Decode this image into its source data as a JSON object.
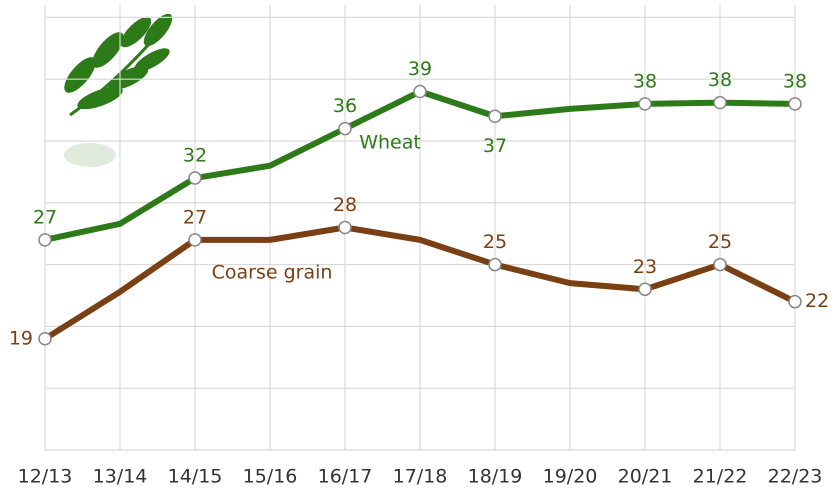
{
  "chart_data": {
    "type": "line",
    "categories": [
      "12/13",
      "13/14",
      "14/15",
      "15/16",
      "16/17",
      "17/18",
      "18/19",
      "19/20",
      "20/21",
      "21/22",
      "22/23"
    ],
    "series": [
      {
        "name": "Wheat",
        "color": "#2d7a19",
        "values": [
          27,
          28.3,
          32,
          33,
          36,
          39,
          37,
          37.6,
          38,
          38.1,
          38
        ],
        "value_labels": [
          "27",
          null,
          "32",
          null,
          "36",
          "39",
          "37",
          null,
          "38",
          "38",
          "38"
        ]
      },
      {
        "name": "Coarse grain",
        "color": "#7b3f14",
        "values": [
          19,
          22.8,
          27,
          27,
          28,
          27,
          25,
          23.5,
          23,
          25,
          22
        ],
        "value_labels": [
          "19",
          null,
          "27",
          null,
          "28",
          null,
          "25",
          null,
          "23",
          "25",
          "22"
        ]
      }
    ],
    "ylim": [
      10,
      46
    ],
    "yticks": [
      15,
      20,
      25,
      30,
      35,
      40,
      45
    ],
    "grid": true
  }
}
